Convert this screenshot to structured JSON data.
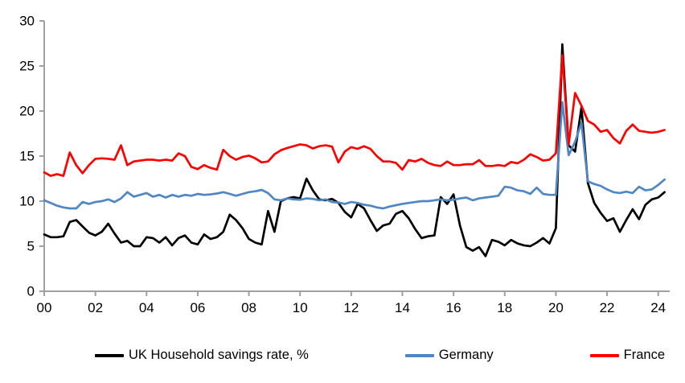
{
  "axis": {
    "color": "#a0a0a0",
    "text_color": "#000000"
  },
  "chart_data": {
    "type": "line",
    "title": "",
    "xlabel": "",
    "ylabel": "",
    "frequency": "quarterly",
    "x_start": "2000 Q1",
    "x_end": "2024 Q2",
    "x_tick_labels": [
      "00",
      "02",
      "04",
      "06",
      "08",
      "10",
      "12",
      "14",
      "16",
      "18",
      "20",
      "22",
      "24"
    ],
    "y_tick_labels": [
      "0",
      "5",
      "10",
      "15",
      "20",
      "25",
      "30"
    ],
    "y_ticks": [
      0,
      5,
      10,
      15,
      20,
      25,
      30
    ],
    "ylim": [
      0,
      30
    ],
    "grid": false,
    "legend_position": "bottom",
    "series": [
      {
        "name": "UK Household savings rate, %",
        "color": "#000000",
        "values": [
          6.3,
          6.0,
          6.0,
          6.1,
          7.7,
          7.9,
          7.2,
          6.5,
          6.2,
          6.6,
          7.5,
          6.4,
          5.4,
          5.6,
          5.0,
          5.0,
          6.0,
          5.9,
          5.4,
          6.0,
          5.1,
          5.9,
          6.2,
          5.4,
          5.2,
          6.3,
          5.8,
          6.0,
          6.6,
          8.5,
          7.9,
          7.0,
          5.8,
          5.4,
          5.2,
          8.9,
          6.6,
          10.0,
          10.3,
          10.45,
          10.3,
          12.5,
          11.2,
          10.2,
          10.1,
          10.25,
          9.8,
          8.8,
          8.2,
          9.7,
          9.2,
          7.9,
          6.7,
          7.3,
          7.5,
          8.6,
          8.9,
          8.1,
          6.9,
          5.9,
          6.1,
          6.2,
          10.45,
          9.7,
          10.75,
          7.3,
          4.9,
          4.5,
          4.9,
          3.9,
          5.7,
          5.5,
          5.1,
          5.7,
          5.3,
          5.1,
          5.0,
          5.4,
          5.9,
          5.3,
          7.0,
          27.4,
          16.2,
          15.5,
          20.4,
          12.0,
          9.8,
          8.7,
          7.8,
          8.1,
          6.6,
          7.9,
          9.1,
          8.0,
          9.6,
          10.2,
          10.4,
          11.0
        ]
      },
      {
        "name": "Germany",
        "color": "#4f86c4",
        "values": [
          10.1,
          9.8,
          9.5,
          9.3,
          9.2,
          9.2,
          9.9,
          9.7,
          9.9,
          10.0,
          10.2,
          9.9,
          10.3,
          11.0,
          10.5,
          10.7,
          10.9,
          10.5,
          10.7,
          10.4,
          10.7,
          10.5,
          10.7,
          10.6,
          10.8,
          10.7,
          10.75,
          10.85,
          11.0,
          10.8,
          10.6,
          10.8,
          11.0,
          11.1,
          11.25,
          10.9,
          10.2,
          10.1,
          10.3,
          10.2,
          10.15,
          10.3,
          10.25,
          10.1,
          10.2,
          9.9,
          9.85,
          9.7,
          9.9,
          9.8,
          9.6,
          9.5,
          9.3,
          9.2,
          9.4,
          9.55,
          9.7,
          9.8,
          9.9,
          10.0,
          10.0,
          10.1,
          10.2,
          10.1,
          10.15,
          10.3,
          10.4,
          10.1,
          10.3,
          10.4,
          10.5,
          10.6,
          11.6,
          11.5,
          11.2,
          11.1,
          10.8,
          11.5,
          10.8,
          10.7,
          10.7,
          21.0,
          15.1,
          16.6,
          18.7,
          12.2,
          11.9,
          11.7,
          11.3,
          11.0,
          10.9,
          11.05,
          10.9,
          11.6,
          11.2,
          11.3,
          11.8,
          12.4
        ]
      },
      {
        "name": "France",
        "color": "#fe0000",
        "values": [
          13.2,
          12.8,
          13.0,
          12.8,
          15.4,
          14.0,
          13.1,
          14.0,
          14.7,
          14.75,
          14.7,
          14.6,
          16.2,
          14.0,
          14.4,
          14.5,
          14.6,
          14.6,
          14.5,
          14.6,
          14.5,
          15.3,
          15.0,
          13.8,
          13.55,
          14.0,
          13.7,
          13.5,
          15.7,
          15.0,
          14.6,
          14.9,
          15.05,
          14.75,
          14.3,
          14.4,
          15.2,
          15.65,
          15.9,
          16.1,
          16.3,
          16.2,
          15.85,
          16.1,
          16.2,
          16.05,
          14.3,
          15.5,
          16.0,
          15.8,
          16.1,
          15.8,
          15.0,
          14.4,
          14.4,
          14.25,
          13.5,
          14.55,
          14.4,
          14.7,
          14.25,
          14.0,
          13.9,
          14.4,
          14.0,
          14.0,
          14.1,
          14.1,
          14.55,
          13.9,
          13.9,
          14.0,
          13.9,
          14.35,
          14.2,
          14.6,
          15.2,
          14.9,
          14.5,
          14.6,
          15.3,
          26.2,
          16.3,
          22.0,
          20.6,
          18.9,
          18.5,
          17.7,
          17.9,
          17.0,
          16.4,
          17.8,
          18.5,
          17.8,
          17.7,
          17.6,
          17.7,
          17.9
        ]
      }
    ]
  },
  "legend": {
    "items": [
      {
        "label": "UK Household savings rate, %",
        "color": "#000000"
      },
      {
        "label": "Germany",
        "color": "#4f86c4"
      },
      {
        "label": "France",
        "color": "#fe0000"
      }
    ]
  }
}
